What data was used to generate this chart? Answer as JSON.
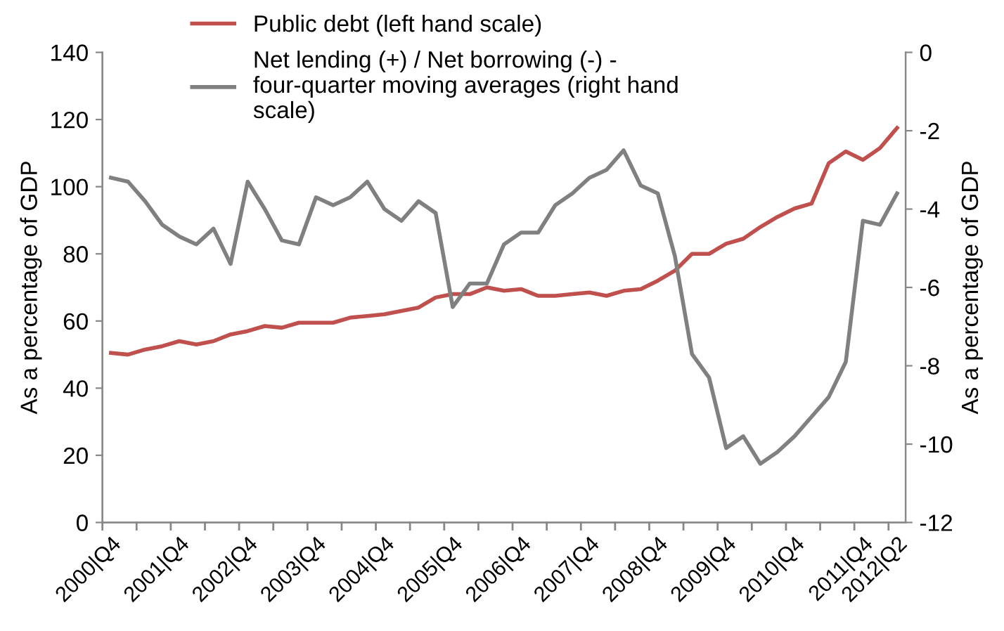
{
  "chart_data": {
    "type": "line",
    "ylabel": "As a percentage of GDP",
    "y2label": "As a percentage of GDP",
    "categories": [
      "2000|Q4",
      null,
      null,
      null,
      "2001|Q4",
      null,
      null,
      null,
      "2002|Q4",
      null,
      null,
      null,
      "2003|Q4",
      null,
      null,
      null,
      "2004|Q4",
      null,
      null,
      null,
      "2005|Q4",
      null,
      null,
      null,
      "2006|Q4",
      null,
      null,
      null,
      "2007|Q4",
      null,
      null,
      null,
      "2008|Q4",
      null,
      null,
      null,
      "2009|Q4",
      null,
      null,
      null,
      "2010|Q4",
      null,
      null,
      null,
      "2011|Q4",
      null,
      "2012|Q2"
    ],
    "series": [
      {
        "name": "Public debt (left hand scale)",
        "color": "#c0504d",
        "values": [
          50.5,
          50,
          51.5,
          52.5,
          54,
          53,
          54,
          56,
          57,
          58.5,
          58,
          59.5,
          59.5,
          59.5,
          61,
          61.5,
          62,
          63,
          64,
          67,
          68,
          68,
          70,
          69,
          69.5,
          67.5,
          67.5,
          68,
          68.5,
          67.5,
          69,
          69.5,
          72,
          75,
          80,
          80,
          83,
          84.5,
          88,
          91,
          93.5,
          95,
          107,
          110.5,
          108,
          111.5,
          117.5
        ]
      },
      {
        "name": "Net lending (+) / Net borrowing (-) - four-quarter moving averages (right hand scale)",
        "color": "#808080",
        "axis": "y2",
        "values": [
          -3.2,
          -3.3,
          -3.8,
          -4.4,
          -4.7,
          -4.9,
          -4.5,
          -5.4,
          -3.3,
          -4.0,
          -4.8,
          -4.9,
          -3.7,
          -3.9,
          -3.7,
          -3.3,
          -4.0,
          -4.3,
          -3.8,
          -4.1,
          -6.5,
          -5.9,
          -5.9,
          -4.9,
          -4.6,
          -4.6,
          -3.9,
          -3.6,
          -3.2,
          -3.0,
          -2.5,
          -3.4,
          -3.6,
          -5.2,
          -7.7,
          -8.3,
          -10.1,
          -9.8,
          -10.5,
          -10.2,
          -9.8,
          -9.3,
          -8.8,
          -7.9,
          -4.3,
          -4.4,
          -3.6
        ]
      }
    ],
    "ylim": [
      0,
      140
    ],
    "yticks": [
      0,
      20,
      40,
      60,
      80,
      100,
      120,
      140
    ],
    "y2lim": [
      -12,
      0
    ],
    "y2ticks": [
      -12,
      -10,
      -8,
      -6,
      -4,
      -2,
      0
    ],
    "legend": "top left",
    "grid": false
  }
}
